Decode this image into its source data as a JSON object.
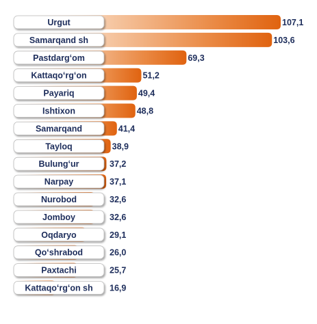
{
  "chart_data": {
    "type": "bar",
    "orientation": "horizontal",
    "categories": [
      "Urgut",
      "Samarqand sh",
      "Pastdargʻom",
      "Kattaqoʻrgʻon",
      "Payariq",
      "Ishtixon",
      "Samarqand",
      "Tayloq",
      "Bulungʻur",
      "Narpay",
      "Nurobod",
      "Jomboy",
      "Oqdaryo",
      "Qoʻshrabod",
      "Paxtachi",
      "Kattaqoʻrgʻon sh"
    ],
    "values": [
      107.1,
      103.6,
      69.3,
      51.2,
      49.4,
      48.8,
      41.4,
      38.9,
      37.2,
      37.1,
      32.6,
      32.6,
      29.1,
      26.0,
      25.7,
      16.9
    ],
    "value_labels": [
      "107,1",
      "103,6",
      "69,3",
      "51,2",
      "49,4",
      "48,8",
      "41,4",
      "38,9",
      "37,2",
      "37,1",
      "32,6",
      "32,6",
      "29,1",
      "26,0",
      "25,7",
      "16,9"
    ],
    "xlim": [
      0,
      107.1
    ],
    "grid": false,
    "legend": "none",
    "colors": {
      "bar": "#e06310",
      "bar_fade": "#ffffff",
      "label_box": "#ffffff",
      "label_box_border": "#b9b9b9",
      "text": "#1d2d5b"
    }
  }
}
